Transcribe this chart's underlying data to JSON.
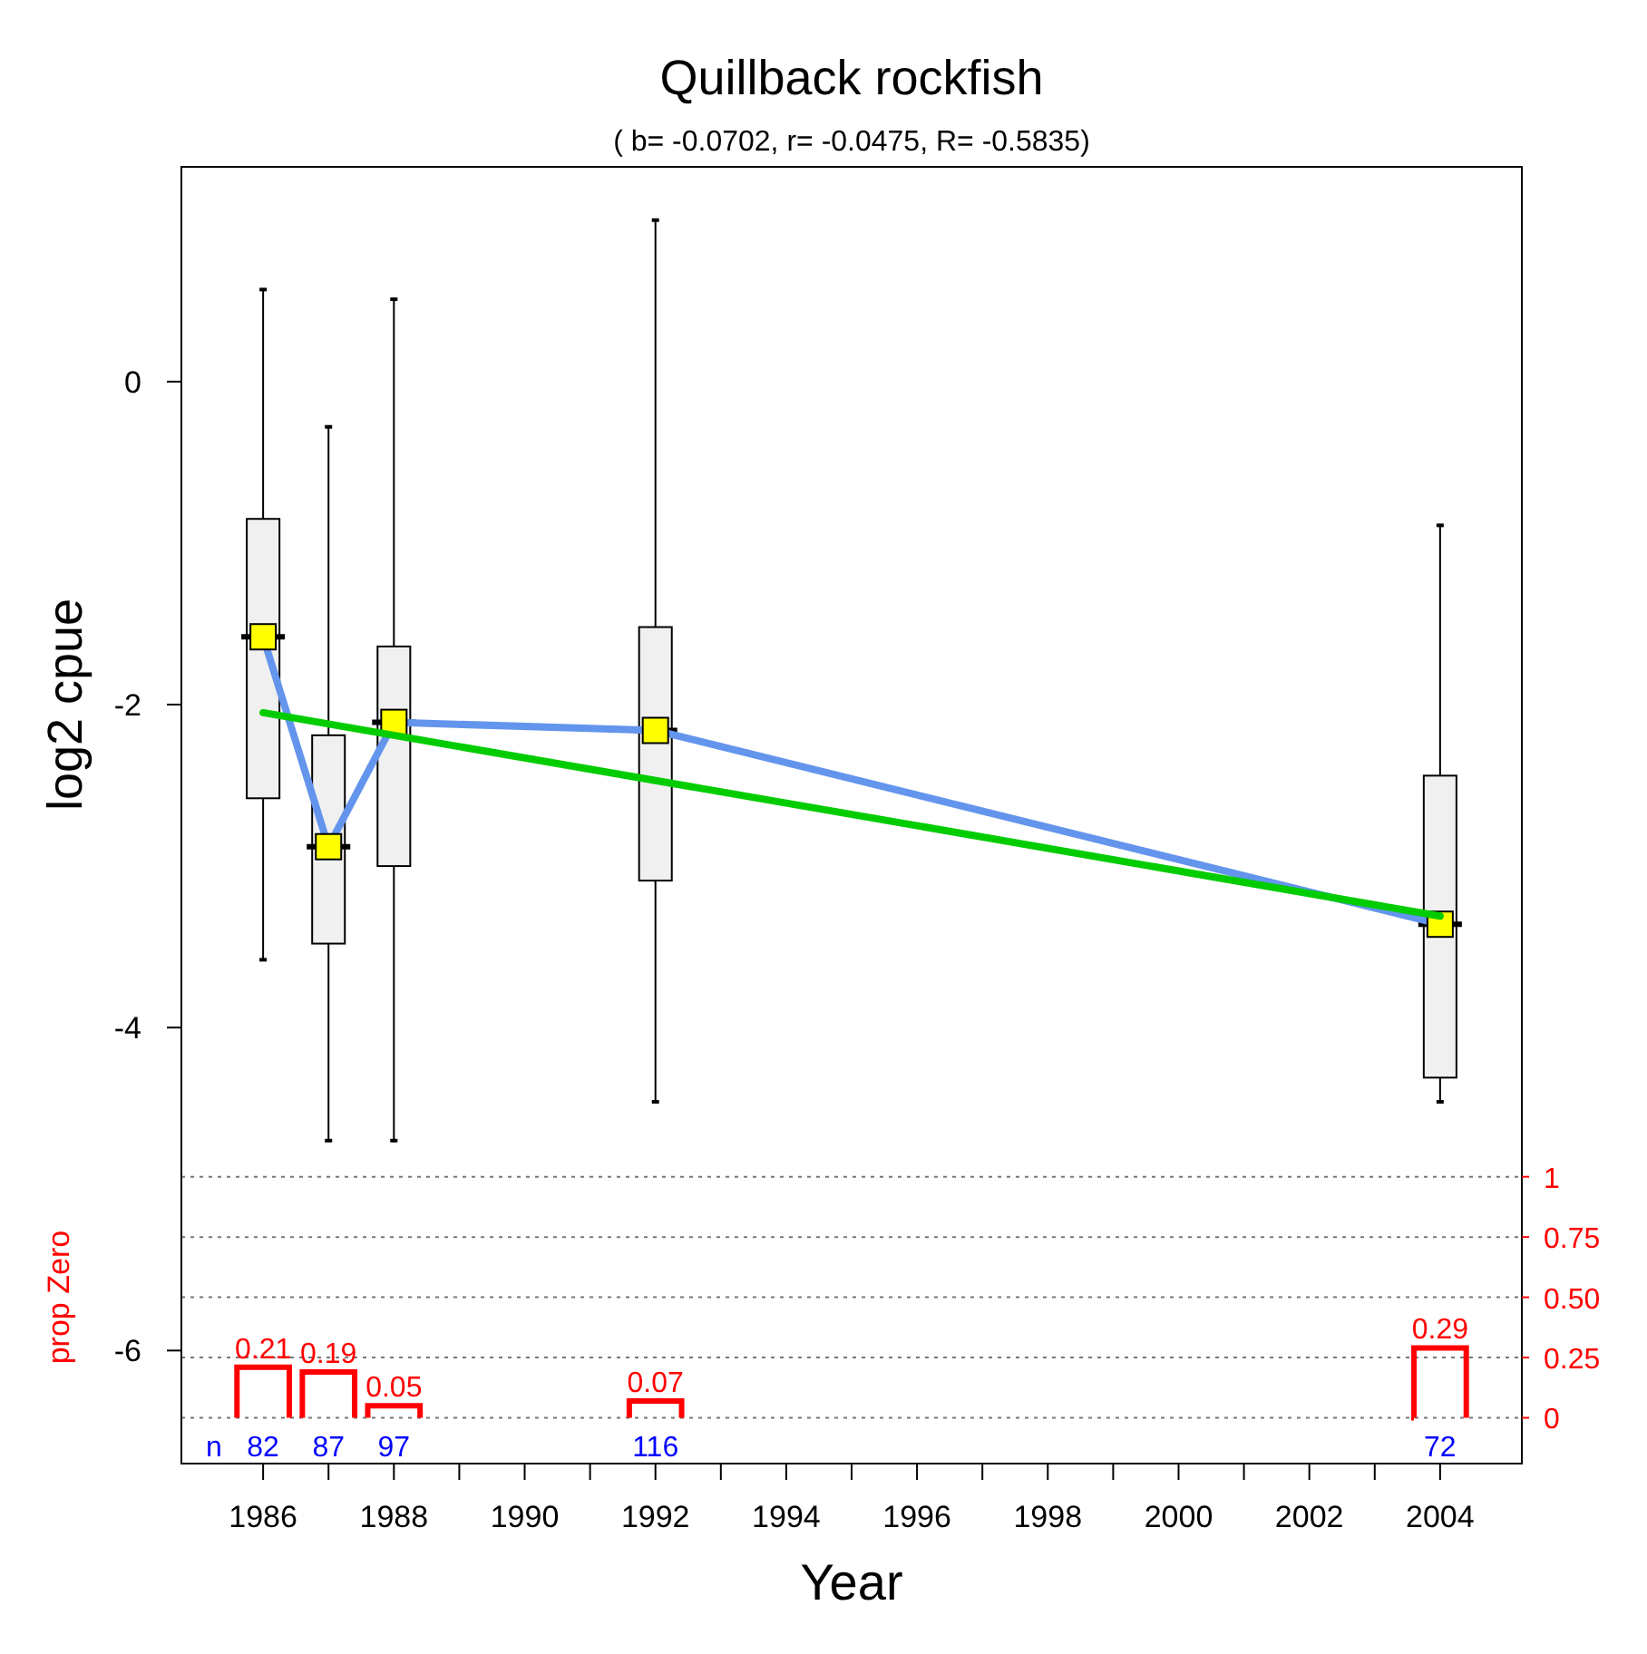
{
  "chart_data": {
    "type": "box",
    "title": "Quillback rockfish",
    "subtitle": "( b= -0.0702,  r= -0.0475,  R= -0.5835)",
    "xlabel": "Year",
    "ylabel": "log2 cpue",
    "x": [
      1986,
      1987,
      1988,
      1992,
      2004
    ],
    "xlim": [
      1984.75,
      2005.25
    ],
    "xticks": [
      1986,
      {
        "value": 1987,
        "label": null
      },
      1988,
      {
        "value": 1989,
        "label": null
      },
      1990,
      {
        "value": 1991,
        "label": null
      },
      1992,
      {
        "value": 1993,
        "label": null
      },
      1994,
      {
        "value": 1995,
        "label": null
      },
      1996,
      {
        "value": 1997,
        "label": null
      },
      1998,
      {
        "value": 1999,
        "label": null
      },
      2000,
      {
        "value": 2001,
        "label": null
      },
      2002,
      {
        "value": 2003,
        "label": null
      },
      2004
    ],
    "ylim": [
      -6.7,
      1.33
    ],
    "yticks": [
      -6,
      -4,
      -2,
      0
    ],
    "y2lim": [
      -0.19,
      5.19
    ],
    "y2ticks": [
      0,
      0.25,
      {
        "value": 0.5,
        "label": "0.50"
      },
      0.75,
      1
    ],
    "marker": "square",
    "series": [
      {
        "color": "#f0f0f0",
        "boxes": [
          {
            "low": -3.58,
            "q1": -2.58,
            "median": -1.58,
            "q3": -0.85,
            "high": 0.57
          },
          {
            "low": -4.7,
            "q1": -3.48,
            "median": -2.88,
            "q3": -2.19,
            "high": -0.28
          },
          {
            "low": -4.7,
            "q1": -3.0,
            "median": -2.11,
            "q3": -1.64,
            "high": 0.51
          },
          {
            "low": -4.46,
            "q1": -3.09,
            "median": -2.16,
            "q3": -1.52,
            "high": 1.0
          },
          {
            "low": -4.46,
            "q1": -4.31,
            "median": -3.36,
            "q3": -2.44,
            "high": -0.89
          }
        ]
      },
      {
        "type": "line",
        "color": "#6495ed",
        "values": [
          -1.58,
          -2.88,
          -2.11,
          -2.16,
          -3.36
        ]
      },
      {
        "type": "line",
        "color": "#00cc00",
        "marker": "none",
        "x": [
          1986,
          2004
        ],
        "values": [
          -2.05,
          -3.31
        ]
      },
      {
        "type": "bar",
        "axis": "y2",
        "color": "#ff0000",
        "values": [
          0.21,
          0.19,
          0.05,
          0.07,
          0.29
        ],
        "value_labels": [
          "0.21",
          "0.19",
          "0.05",
          "0.07",
          "0.29"
        ]
      }
    ],
    "ref_lines": [
      {
        "axis": "y2",
        "value": 0,
        "line_style": "dotted"
      },
      {
        "axis": "y2",
        "value": 0.25,
        "line_style": "dotted"
      },
      {
        "axis": "y2",
        "value": 0.5,
        "line_style": "dotted"
      },
      {
        "axis": "y2",
        "value": 0.75,
        "line_style": "dotted"
      },
      {
        "axis": "y2",
        "value": 1,
        "line_style": "dotted"
      }
    ],
    "annotations": [
      "prop Zero",
      "n",
      "82",
      "87",
      "97",
      "116",
      "72"
    ]
  }
}
